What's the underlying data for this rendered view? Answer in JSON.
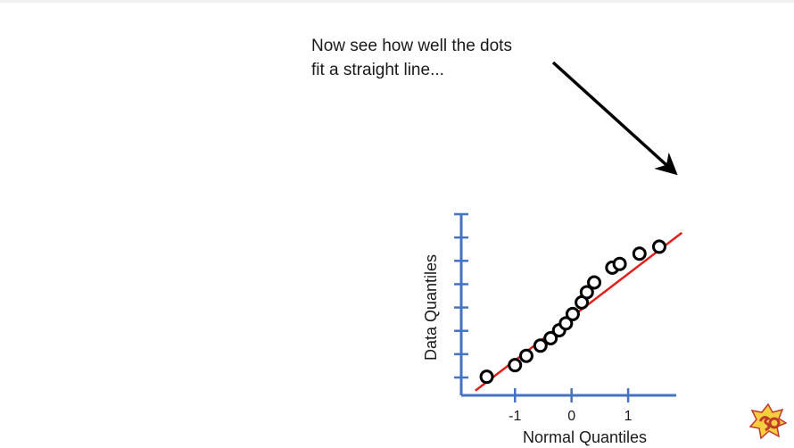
{
  "annotation": {
    "line1": "Now see how well the dots",
    "line2": "fit a straight line..."
  },
  "colors": {
    "axis": "#4472c4",
    "fit_line": "#e0201b",
    "points": "#000000",
    "arrow": "#000000"
  },
  "logo": {
    "icon": "statquest-logo-icon"
  },
  "chart_data": {
    "type": "scatter",
    "xlabel": "Normal Quantiles",
    "ylabel": "Data Quantiles",
    "x_ticks": [
      -1,
      0,
      1
    ],
    "x_tick_labels": [
      "-1",
      "0",
      "1"
    ],
    "y_tick_count": 8,
    "y_tick_labels_shown": false,
    "grid": false,
    "legend": "none",
    "xlim": [
      -1.95,
      1.85
    ],
    "ylim": [
      -1.95,
      1.95
    ],
    "points": [
      {
        "x": -1.5,
        "y": -1.55
      },
      {
        "x": -1.0,
        "y": -1.3
      },
      {
        "x": -0.8,
        "y": -1.1
      },
      {
        "x": -0.55,
        "y": -0.88
      },
      {
        "x": -0.37,
        "y": -0.72
      },
      {
        "x": -0.22,
        "y": -0.55
      },
      {
        "x": -0.1,
        "y": -0.4
      },
      {
        "x": 0.02,
        "y": -0.2
      },
      {
        "x": 0.18,
        "y": 0.05
      },
      {
        "x": 0.27,
        "y": 0.27
      },
      {
        "x": 0.4,
        "y": 0.48
      },
      {
        "x": 0.72,
        "y": 0.8
      },
      {
        "x": 0.85,
        "y": 0.88
      },
      {
        "x": 1.2,
        "y": 1.1
      },
      {
        "x": 1.55,
        "y": 1.25
      }
    ],
    "fit_line": {
      "x": [
        -1.7,
        1.95
      ],
      "y": [
        -1.85,
        1.55
      ]
    },
    "arrow": {
      "from_anchor": "annotation",
      "to_anchor": "fit_line_end"
    }
  }
}
